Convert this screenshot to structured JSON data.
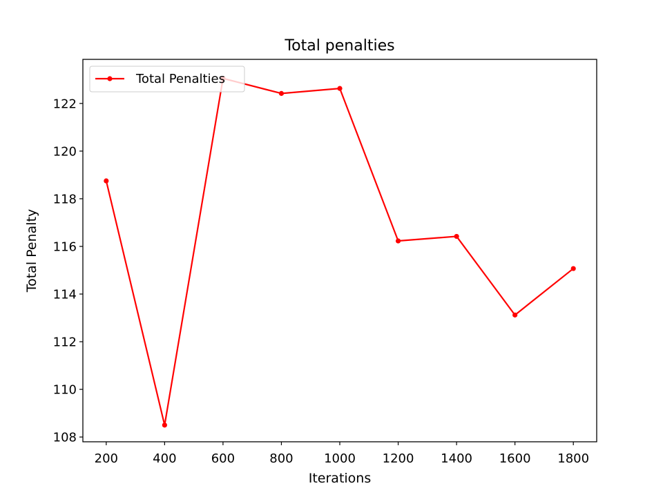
{
  "chart_data": {
    "type": "line",
    "title": "Total penalties",
    "xlabel": "Iterations",
    "ylabel": "Total Penalty",
    "x": [
      200,
      400,
      600,
      800,
      1000,
      1200,
      1400,
      1600,
      1800
    ],
    "series": [
      {
        "name": "Total Penalties",
        "color": "#ff0000",
        "marker": "circle",
        "values": [
          118.75,
          108.5,
          123.05,
          122.42,
          122.63,
          116.23,
          116.42,
          113.12,
          115.07
        ]
      }
    ],
    "xlim": [
      120,
      1880
    ],
    "ylim": [
      107.8,
      123.85
    ],
    "xticks": [
      200,
      400,
      600,
      800,
      1000,
      1200,
      1400,
      1600,
      1800
    ],
    "yticks": [
      108,
      110,
      112,
      114,
      116,
      118,
      120,
      122
    ],
    "grid": false,
    "legend_position": "top-left"
  }
}
